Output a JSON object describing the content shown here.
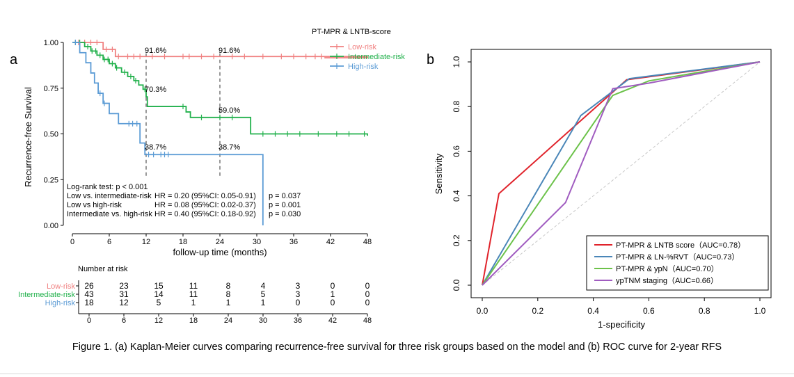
{
  "caption": "Figure 1. (a) Kaplan-Meier curves comparing recurrence-free survival for three risk groups based on the model  and (b) ROC curve for 2-year RFS",
  "chart_data": [
    {
      "type": "line",
      "panel_label": "a",
      "ylabel": "Recurrence-free Survival",
      "xlabel": "follow-up time (months)",
      "xlim": [
        0,
        48
      ],
      "ylim": [
        0,
        1
      ],
      "xticks": [
        "0",
        "6",
        "12",
        "18",
        "24",
        "30",
        "36",
        "42",
        "48"
      ],
      "yticks": [
        "0.00",
        "0.25",
        "0.50",
        "0.75",
        "1.00"
      ],
      "legend_title": "PT-MPR & LNTB-score",
      "colors": {
        "Low-risk": "#f08080",
        "Intermediate-risk": "#22b14c",
        "High-risk": "#5b9bd5"
      },
      "series": [
        {
          "name": "Low-risk",
          "steps": [
            [
              0,
              1
            ],
            [
              5,
              0.962
            ],
            [
              7,
              0.923
            ],
            [
              48,
              0.916
            ]
          ],
          "end": 41,
          "censors": [
            0.5,
            1,
            2,
            3,
            4,
            5.5,
            6.5,
            7.5,
            9,
            10,
            11,
            13,
            15,
            18,
            19,
            21,
            23,
            26,
            28,
            31,
            34,
            36,
            38,
            39.5,
            40.5
          ]
        },
        {
          "name": "Intermediate-risk",
          "steps": [
            [
              0,
              1
            ],
            [
              2,
              0.977
            ],
            [
              3,
              0.953
            ],
            [
              4,
              0.93
            ],
            [
              5,
              0.907
            ],
            [
              6,
              0.884
            ],
            [
              7,
              0.861
            ],
            [
              8,
              0.837
            ],
            [
              9,
              0.814
            ],
            [
              10,
              0.791
            ],
            [
              10.8,
              0.767
            ],
            [
              11.5,
              0.744
            ],
            [
              12,
              0.703
            ],
            [
              12.2,
              0.65
            ],
            [
              18.5,
              0.62
            ],
            [
              19.2,
              0.59
            ],
            [
              29,
              0.5
            ],
            [
              48,
              0.49
            ]
          ],
          "end": 48,
          "censors": [
            0.5,
            1.2,
            2.5,
            3.2,
            3.8,
            4.5,
            5.2,
            5.8,
            6.5,
            7.2,
            8.5,
            9.5,
            10.3,
            11.8,
            18,
            21,
            24,
            26,
            31,
            33,
            35,
            37,
            40,
            43,
            45,
            47.5
          ]
        },
        {
          "name": "High-risk",
          "steps": [
            [
              0,
              1
            ],
            [
              1.2,
              0.944
            ],
            [
              2.2,
              0.889
            ],
            [
              3,
              0.833
            ],
            [
              3.6,
              0.778
            ],
            [
              4.2,
              0.722
            ],
            [
              5,
              0.667
            ],
            [
              6,
              0.611
            ],
            [
              7.5,
              0.556
            ],
            [
              11,
              0.45
            ],
            [
              11.8,
              0.387
            ],
            [
              30,
              0.387
            ],
            [
              31,
              0
            ]
          ],
          "end": 31,
          "censors": [
            0.5,
            4.5,
            5.2,
            9.2,
            9.8,
            10.5,
            12.4,
            13.2,
            14.4,
            15,
            15.6
          ]
        }
      ],
      "annotations": [
        {
          "text": "91.6%",
          "x": 12,
          "y": 0.916
        },
        {
          "text": "91.6%",
          "x": 24,
          "y": 0.916
        },
        {
          "text": "70.3%",
          "x": 12,
          "y": 0.703
        },
        {
          "text": "59.0%",
          "x": 24,
          "y": 0.59
        },
        {
          "text": "38.7%",
          "x": 12,
          "y": 0.387
        },
        {
          "text": "38.7%",
          "x": 24,
          "y": 0.387
        }
      ],
      "reference_lines_x": [
        12,
        24
      ],
      "stats": {
        "logrank": "Log-rank test: p < 0.001",
        "rows": [
          {
            "label": "Low vs. intermediate-risk",
            "hr": "HR = 0.20 (95%CI: 0.05-0.91)",
            "p": "p = 0.037"
          },
          {
            "label": "Low vs high-risk",
            "hr": "HR = 0.08 (95%CI: 0.02-0.37)",
            "p": "p = 0.001"
          },
          {
            "label": "Intermediate vs. high-risk",
            "hr": "HR = 0.40 (95%CI: 0.18-0.92)",
            "p": "p = 0.030"
          }
        ]
      },
      "risk_table": {
        "title": "Number at risk",
        "times": [
          "0",
          "6",
          "12",
          "18",
          "24",
          "30",
          "36",
          "42",
          "48"
        ],
        "rows": [
          {
            "label": "Low-risk",
            "counts": [
              "26",
              "23",
              "15",
              "11",
              "8",
              "4",
              "3",
              "0",
              "0"
            ]
          },
          {
            "label": "Intermediate-risk",
            "counts": [
              "43",
              "31",
              "14",
              "11",
              "8",
              "5",
              "3",
              "1",
              "0"
            ]
          },
          {
            "label": "High-risk",
            "counts": [
              "18",
              "12",
              "5",
              "1",
              "1",
              "1",
              "0",
              "0",
              "0"
            ]
          }
        ]
      }
    },
    {
      "type": "line",
      "panel_label": "b",
      "title": "ROC curve for 2-year RFS",
      "xlabel": "1-specificity",
      "ylabel": "Sensitivity",
      "xlim": [
        0,
        1
      ],
      "ylim": [
        0,
        1
      ],
      "xticks": [
        "0.0",
        "0.2",
        "0.4",
        "0.6",
        "0.8",
        "1.0"
      ],
      "yticks": [
        "0.0",
        "0.2",
        "0.4",
        "0.6",
        "0.8",
        "1.0"
      ],
      "series": [
        {
          "name": "PT-MPR & LNTB score（AUC=0.78）",
          "color": "#e0232b",
          "x": [
            0,
            0.06,
            0.52,
            1.0
          ],
          "y": [
            0,
            0.41,
            0.92,
            1.0
          ]
        },
        {
          "name": "PT-MPR & LN-%RVT（AUC=0.73）",
          "color": "#4a86b8",
          "x": [
            0,
            0.355,
            0.53,
            1.0
          ],
          "y": [
            0,
            0.76,
            0.925,
            1.0
          ]
        },
        {
          "name": "PT-MPR & ypN（AUC=0.70）",
          "color": "#6cc24a",
          "x": [
            0,
            0.47,
            0.6,
            1.0
          ],
          "y": [
            0,
            0.85,
            0.915,
            1.0
          ]
        },
        {
          "name": "ypTNM staging（AUC=0.66）",
          "color": "#a05cc0",
          "x": [
            0,
            0.3,
            0.47,
            0.6,
            1.0
          ],
          "y": [
            0,
            0.37,
            0.88,
            0.905,
            1.0
          ]
        }
      ],
      "diagonal": true,
      "legend_position": "bottom-right"
    }
  ]
}
